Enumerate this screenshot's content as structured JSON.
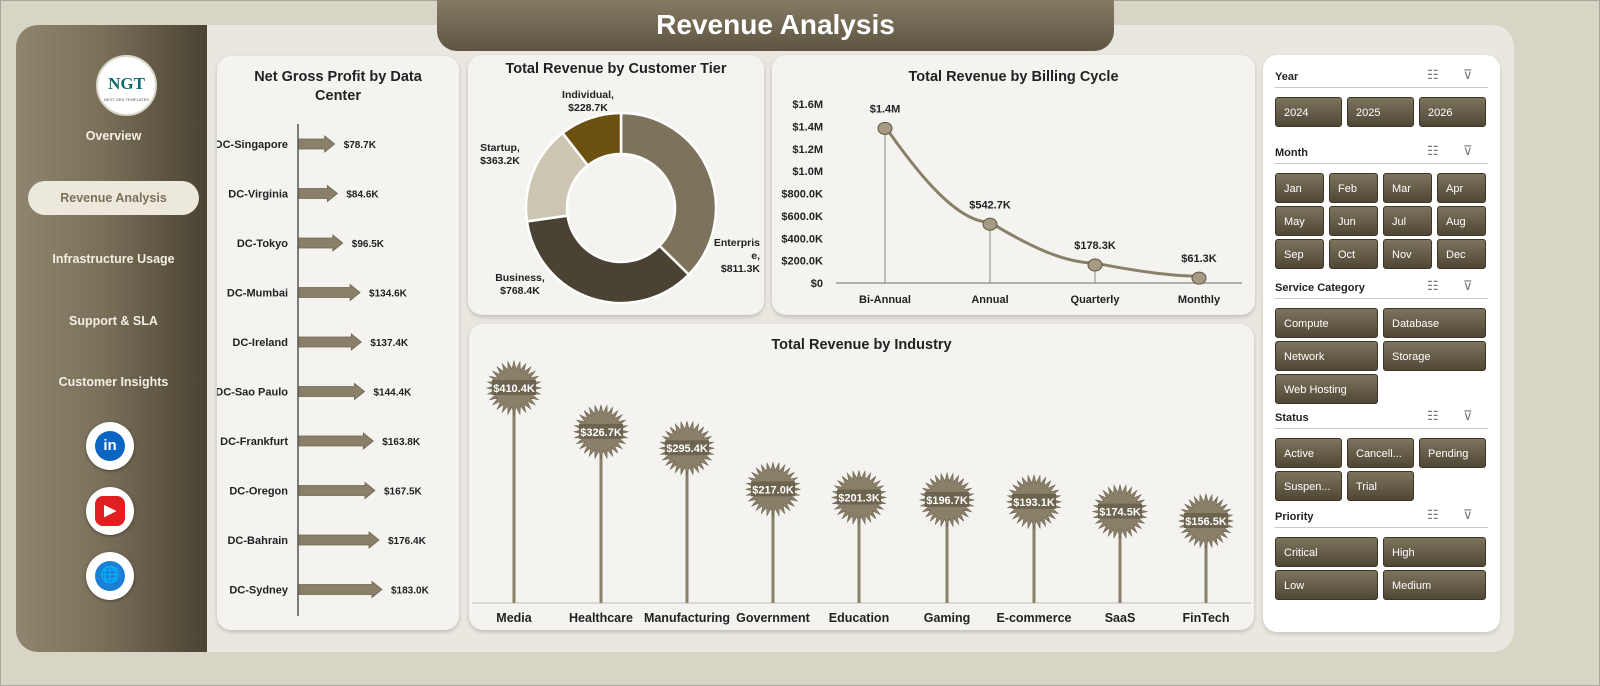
{
  "header": {
    "title": "Revenue Analysis"
  },
  "logo": {
    "text": "NGT",
    "subtext": "NEXT GEN TEMPLATES"
  },
  "nav": [
    {
      "label": "Overview",
      "active": false
    },
    {
      "label": "Revenue Analysis",
      "active": true
    },
    {
      "label": "Infrastructure Usage",
      "active": false
    },
    {
      "label": "Support & SLA",
      "active": false
    },
    {
      "label": "Customer Insights",
      "active": false
    }
  ],
  "social": [
    {
      "icon": "linkedin-icon",
      "text": "in",
      "color": "#0a66c2"
    },
    {
      "icon": "youtube-icon",
      "text": "▶",
      "color": "#e02020"
    },
    {
      "icon": "globe-icon",
      "text": "🌐",
      "color": "#1b7fd6"
    }
  ],
  "colors": {
    "accent": "#7a705a",
    "dark": "#4f4735",
    "bg": "#e9e7df"
  },
  "chart_data": [
    {
      "id": "gross-profit",
      "type": "bar",
      "title": "Net Gross Profit by Data Center",
      "categories": [
        "DC-Singapore",
        "DC-Virginia",
        "DC-Tokyo",
        "DC-Mumbai",
        "DC-Ireland",
        "DC-Sao Paulo",
        "DC-Frankfurt",
        "DC-Oregon",
        "DC-Bahrain",
        "DC-Sydney"
      ],
      "values": [
        78.7,
        84.6,
        96.5,
        134.6,
        137.4,
        144.4,
        163.8,
        167.5,
        176.4,
        183.0
      ],
      "labels": [
        "$78.7K",
        "$84.6K",
        "$96.5K",
        "$134.6K",
        "$137.4K",
        "$144.4K",
        "$163.8K",
        "$167.5K",
        "$176.4K",
        "$183.0K"
      ]
    },
    {
      "id": "customer-tier",
      "type": "pie",
      "title": "Total Revenue by Customer Tier",
      "slices": [
        {
          "name": "Enterprise",
          "value": 811.3,
          "label": "$811.3K",
          "color": "#7d735d"
        },
        {
          "name": "Business",
          "value": 768.4,
          "label": "$768.4K",
          "color": "#4a4333"
        },
        {
          "name": "Startup",
          "value": 363.2,
          "label": "$363.2K",
          "color": "#cdc6b3"
        },
        {
          "name": "Individual",
          "value": 228.7,
          "label": "$228.7K",
          "color": "#6b5010"
        }
      ]
    },
    {
      "id": "billing-cycle",
      "type": "line",
      "title": "Total Revenue by Billing Cycle",
      "categories": [
        "Bi-Annual",
        "Annual",
        "Quarterly",
        "Monthly"
      ],
      "values": [
        1400,
        542.7,
        178.3,
        61.3
      ],
      "labels": [
        "$1.4M",
        "$542.7K",
        "$178.3K",
        "$61.3K"
      ],
      "y_ticks": [
        "$0",
        "$200.0K",
        "$400.0K",
        "$600.0K",
        "$800.0K",
        "$1.0M",
        "$1.2M",
        "$1.4M",
        "$1.6M"
      ],
      "ylim": [
        0,
        1600
      ]
    },
    {
      "id": "industry",
      "type": "bar",
      "title": "Total Revenue by Industry",
      "categories": [
        "Media",
        "Healthcare",
        "Manufacturing",
        "Government",
        "Education",
        "Gaming",
        "E-commerce",
        "SaaS",
        "FinTech"
      ],
      "values": [
        410.4,
        326.7,
        295.4,
        217.0,
        201.3,
        196.7,
        193.1,
        174.5,
        156.5
      ],
      "labels": [
        "$410.4K",
        "$326.7K",
        "$295.4K",
        "$217.0K",
        "$201.3K",
        "$196.7K",
        "$193.1K",
        "$174.5K",
        "$156.5K"
      ]
    }
  ],
  "slicers": [
    {
      "title": "Year",
      "cols": 3,
      "items": [
        "2024",
        "2025",
        "2026"
      ]
    },
    {
      "title": "Month",
      "cols": 4,
      "items": [
        "Jan",
        "Feb",
        "Mar",
        "Apr",
        "May",
        "Jun",
        "Jul",
        "Aug",
        "Sep",
        "Oct",
        "Nov",
        "Dec"
      ]
    },
    {
      "title": "Service Category",
      "cols": 2,
      "items": [
        "Compute",
        "Database",
        "Network",
        "Storage",
        "Web Hosting"
      ]
    },
    {
      "title": "Status",
      "cols": 3,
      "items": [
        "Active",
        "Cancell...",
        "Pending",
        "Suspen...",
        "Trial"
      ]
    },
    {
      "title": "Priority",
      "cols": 2,
      "items": [
        "Critical",
        "High",
        "Low",
        "Medium"
      ]
    }
  ],
  "slicer_icons": {
    "multi": "☷",
    "clear": "⊽"
  }
}
